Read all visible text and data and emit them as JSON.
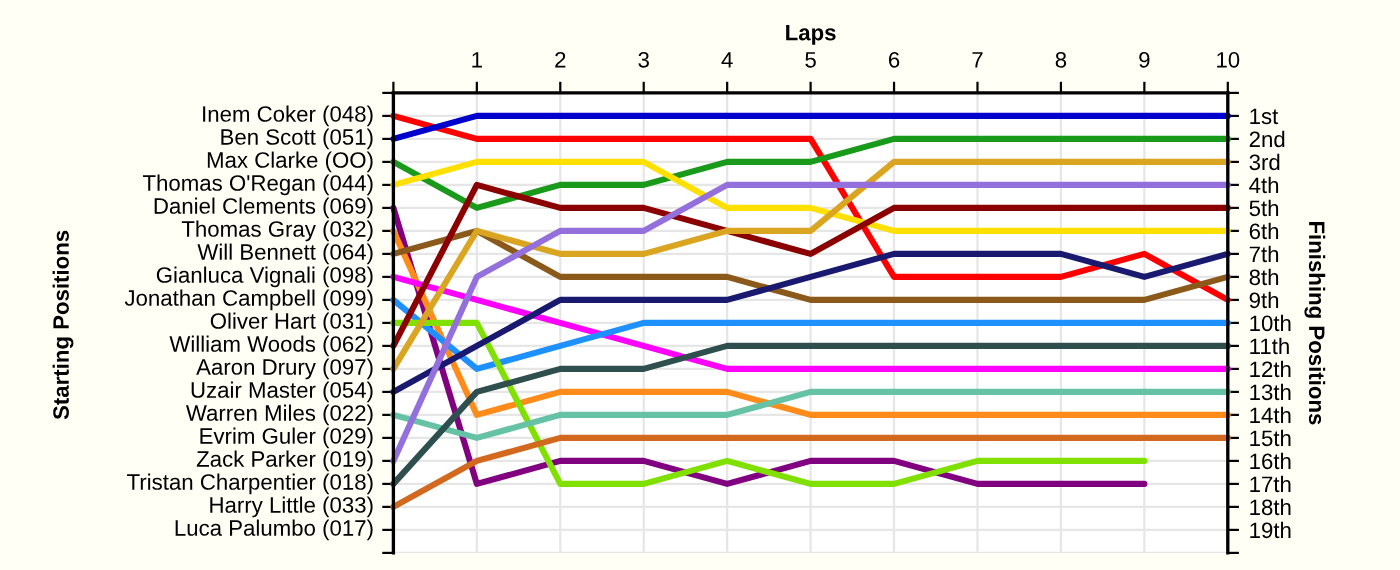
{
  "chart_data": {
    "type": "line",
    "xlabel": "Laps",
    "ylabel": "Finishing Positions",
    "x": [
      0,
      1,
      2,
      3,
      4,
      5,
      6,
      7,
      8,
      9,
      10
    ],
    "xlim": [
      0,
      10
    ],
    "xticks": [
      {
        "value": 0,
        "label": null
      },
      1,
      2,
      3,
      4,
      5,
      6,
      7,
      8,
      9,
      10
    ],
    "ylim": [
      20,
      0
    ],
    "yticks": [
      {
        "value": 0,
        "label": null
      },
      {
        "value": 1,
        "label": "1st"
      },
      {
        "value": 2,
        "label": "2nd"
      },
      {
        "value": 3,
        "label": "3rd"
      },
      {
        "value": 4,
        "label": "4th"
      },
      {
        "value": 5,
        "label": "5th"
      },
      {
        "value": 6,
        "label": "6th"
      },
      {
        "value": 7,
        "label": "7th"
      },
      {
        "value": 8,
        "label": "8th"
      },
      {
        "value": 9,
        "label": "9th"
      },
      {
        "value": 10,
        "label": "10th"
      },
      {
        "value": 11,
        "label": "11th"
      },
      {
        "value": 12,
        "label": "12th"
      },
      {
        "value": 13,
        "label": "13th"
      },
      {
        "value": 14,
        "label": "14th"
      },
      {
        "value": 15,
        "label": "15th"
      },
      {
        "value": 16,
        "label": "16th"
      },
      {
        "value": 17,
        "label": "17th"
      },
      {
        "value": 18,
        "label": "18th"
      },
      {
        "value": 19,
        "label": "19th"
      },
      {
        "value": 20,
        "label": null
      }
    ],
    "annotations": [
      "Starting Positions",
      "Inem Coker (048)",
      "Ben Scott (051)",
      "Max Clarke (OO)",
      "Thomas O'Regan (044)",
      "Daniel Clements (069)",
      "Thomas Gray (032)",
      "Will Bennett (064)",
      "Gianluca Vignali (098)",
      "Jonathan Campbell (099)",
      "Oliver Hart (031)",
      "William Woods (062)",
      "Aaron Drury (097)",
      "Uzair Master (054)",
      "Warren Miles (022)",
      "Evrim Guler (029)",
      "Zack Parker (019)",
      "Tristan Charpentier (018)",
      "Harry Little (033)",
      "Luca Palumbo (017)"
    ],
    "grid": true,
    "marker": "none",
    "line_style": "solid",
    "series": [
      {
        "color": "#ff0000",
        "values": [
          1,
          2,
          2,
          2,
          2,
          2,
          8,
          8,
          8,
          7,
          9
        ]
      },
      {
        "color": "#0000cc",
        "values": [
          2,
          1,
          1,
          1,
          1,
          1,
          1,
          1,
          1,
          1,
          1
        ]
      },
      {
        "color": "#1a9a1a",
        "values": [
          3,
          5,
          4,
          4,
          3,
          3,
          2,
          2,
          2,
          2,
          2
        ]
      },
      {
        "color": "#ffe000",
        "values": [
          4,
          3,
          3,
          3,
          5,
          5,
          6,
          6,
          6,
          6,
          6
        ]
      },
      {
        "color": "#800080",
        "values": [
          5,
          17,
          16,
          16,
          17,
          16,
          16,
          17,
          17,
          17,
          null
        ]
      },
      {
        "color": "#ff8c1a",
        "values": [
          6,
          14,
          13,
          13,
          13,
          14,
          14,
          14,
          14,
          14,
          14
        ]
      },
      {
        "color": "#8b5a1a",
        "values": [
          7,
          6,
          8,
          8,
          8,
          9,
          9,
          9,
          9,
          9,
          8
        ]
      },
      {
        "color": "#ff00ff",
        "values": [
          8,
          9,
          10,
          11,
          12,
          12,
          12,
          12,
          12,
          12,
          12
        ]
      },
      {
        "color": "#1e90ff",
        "values": [
          9,
          12,
          11,
          10,
          10,
          10,
          10,
          10,
          10,
          10,
          10
        ]
      },
      {
        "color": "#80e000",
        "values": [
          10,
          10,
          17,
          17,
          16,
          17,
          17,
          16,
          16,
          16,
          null
        ]
      },
      {
        "color": "#8b0000",
        "values": [
          11,
          4,
          5,
          5,
          6,
          7,
          5,
          5,
          5,
          5,
          5
        ]
      },
      {
        "color": "#daa520",
        "values": [
          12,
          6,
          7,
          7,
          6,
          6,
          3,
          3,
          3,
          3,
          3
        ]
      },
      {
        "color": "#191970",
        "values": [
          13,
          11,
          9,
          9,
          9,
          8,
          7,
          7,
          7,
          8,
          7
        ]
      },
      {
        "color": "#66c2a5",
        "values": [
          14,
          15,
          14,
          14,
          14,
          13,
          13,
          13,
          13,
          13,
          13
        ]
      },
      {
        "color": "#9370db",
        "values": [
          16,
          8,
          6,
          6,
          4,
          4,
          4,
          4,
          4,
          4,
          4
        ]
      },
      {
        "color": "#2f4f4f",
        "values": [
          17,
          13,
          12,
          12,
          11,
          11,
          11,
          11,
          11,
          11,
          11
        ]
      },
      {
        "color": "#d2691e",
        "values": [
          18,
          16,
          15,
          15,
          15,
          15,
          15,
          15,
          15,
          15,
          15
        ]
      }
    ]
  }
}
